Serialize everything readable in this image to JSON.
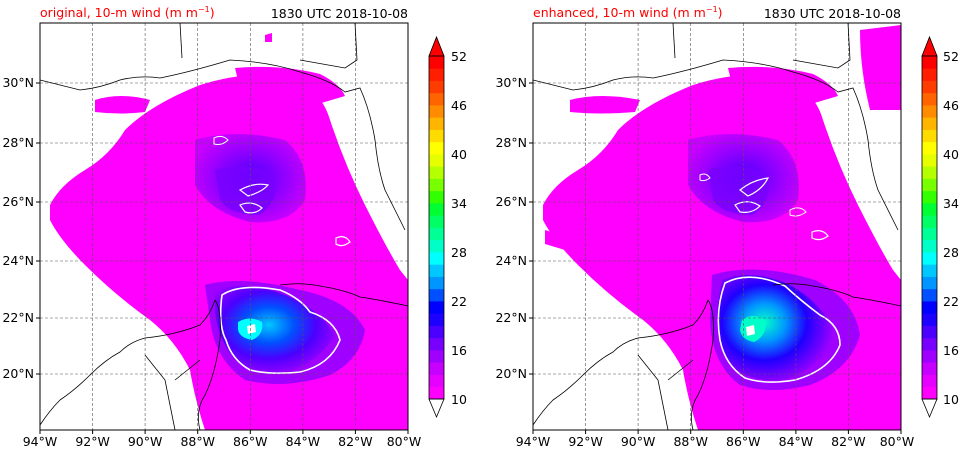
{
  "panels": [
    {
      "title": "original, 10-m wind (m m",
      "title_sup": "−1",
      "title_close": ")",
      "timestamp": "1830 UTC 2018-10-08",
      "title_color": "#ff0000"
    },
    {
      "title": "enhanced, 10-m wind (m m",
      "title_sup": "−1",
      "title_close": ")",
      "timestamp": "1830 UTC 2018-10-08",
      "title_color": "#ff0000"
    }
  ],
  "lat_labels": [
    "30°N",
    "28°N",
    "26°N",
    "24°N",
    "22°N",
    "20°N"
  ],
  "lon_labels": [
    "94°W",
    "92°W",
    "90°W",
    "88°W",
    "86°W",
    "84°W",
    "82°W",
    "80°W"
  ],
  "colorbar": {
    "tick_labels": [
      "52",
      "46",
      "40",
      "34",
      "28",
      "22",
      "16",
      "10"
    ],
    "min": 10,
    "max": 52,
    "colors": [
      "#ff00ff",
      "#e600ff",
      "#c800ff",
      "#a000ff",
      "#7800ff",
      "#4b00ff",
      "#1e00ff",
      "#0000ff",
      "#0050ff",
      "#0096ff",
      "#00c8ff",
      "#00ffff",
      "#00ffc8",
      "#00ff96",
      "#00ff64",
      "#00ff32",
      "#32ff00",
      "#78ff00",
      "#b4ff00",
      "#e6ff00",
      "#ffff00",
      "#ffdc00",
      "#ffb400",
      "#ff8c00",
      "#ff6400",
      "#ff3c00",
      "#ff1e00",
      "#ff0000"
    ]
  },
  "colors": {
    "land": "#ffffff",
    "wind_low": "#ff00ff",
    "wind_mid": "#a000ff",
    "wind_high": "#0000ff",
    "contour": "#ffffff"
  }
}
